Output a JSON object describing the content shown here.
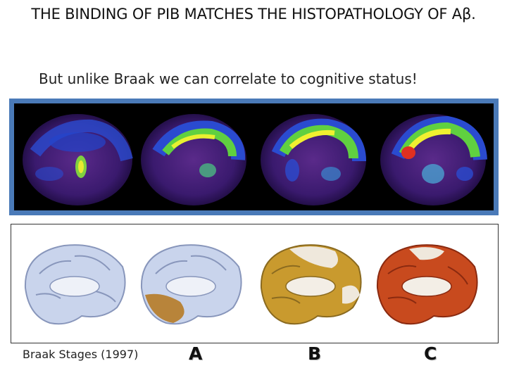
{
  "slide": {
    "title": "THE BINDING OF PIB MATCHES THE HISTOPATHOLOGY OF Aβ.",
    "subtitle": "But unlike Braak we can correlate to cognitive status!"
  },
  "braak": {
    "caption": "Braak Stages  (1997)",
    "stages": [
      "A",
      "B",
      "C"
    ]
  },
  "colors": {
    "pet_frame": "#4a7ab8",
    "stage_normal": "#c9d4ec",
    "stage_a": "#b8843a",
    "stage_b": "#c99a2e",
    "stage_c": "#c84a1e"
  }
}
